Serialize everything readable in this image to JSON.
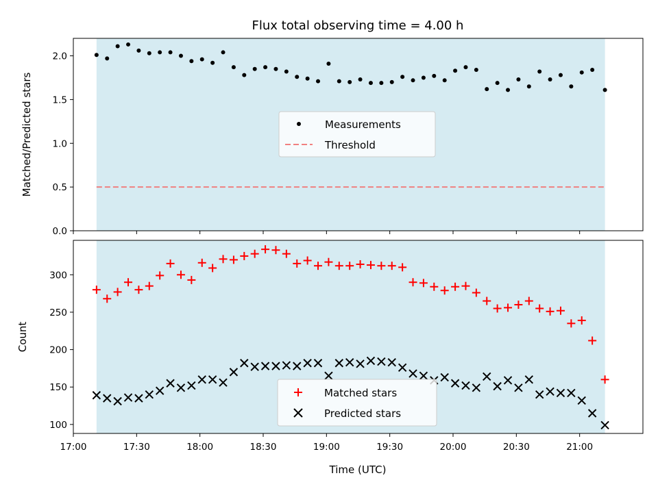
{
  "title": "Flux total observing time = 4.00 h",
  "colors": {
    "shade": "#add8e6",
    "threshold": "#f08080",
    "measurements": "#000000",
    "matched": "#ff0000",
    "predicted": "#000000"
  },
  "chart_data": [
    {
      "type": "scatter",
      "name": "ratio-panel",
      "ylabel": "Matched/Predicted stars",
      "xlim": [
        "17:00",
        "21:30"
      ],
      "ylim": [
        0.0,
        2.2
      ],
      "yticks": [
        0.0,
        0.5,
        1.0,
        1.5,
        2.0
      ],
      "ytick_labels": [
        "0.0",
        "0.5",
        "1.0",
        "1.5",
        "2.0"
      ],
      "shaded_interval": [
        "17:11",
        "21:12"
      ],
      "legend_placement": "center",
      "legend": [
        "Measurements",
        "Threshold"
      ],
      "threshold": 0.5,
      "series": [
        {
          "name": "Measurements",
          "x": [
            "17:11",
            "17:16",
            "17:21",
            "17:26",
            "17:31",
            "17:36",
            "17:41",
            "17:46",
            "17:51",
            "17:56",
            "18:01",
            "18:06",
            "18:11",
            "18:16",
            "18:21",
            "18:26",
            "18:31",
            "18:36",
            "18:41",
            "18:46",
            "18:51",
            "18:56",
            "19:01",
            "19:06",
            "19:11",
            "19:16",
            "19:21",
            "19:26",
            "19:31",
            "19:36",
            "19:41",
            "19:46",
            "19:51",
            "19:56",
            "20:01",
            "20:06",
            "20:11",
            "20:16",
            "20:21",
            "20:26",
            "20:31",
            "20:36",
            "20:41",
            "20:46",
            "20:51",
            "20:56",
            "21:01",
            "21:06",
            "21:12"
          ],
          "values": [
            2.01,
            1.97,
            2.11,
            2.13,
            2.06,
            2.03,
            2.04,
            2.04,
            2.0,
            1.94,
            1.96,
            1.92,
            2.04,
            1.87,
            1.78,
            1.85,
            1.87,
            1.85,
            1.82,
            1.76,
            1.74,
            1.71,
            1.91,
            1.71,
            1.7,
            1.73,
            1.69,
            1.69,
            1.7,
            1.76,
            1.72,
            1.75,
            1.77,
            1.72,
            1.83,
            1.87,
            1.84,
            1.62,
            1.69,
            1.61,
            1.73,
            1.65,
            1.82,
            1.73,
            1.78,
            1.65,
            1.81,
            1.84,
            1.61
          ]
        }
      ]
    },
    {
      "type": "scatter",
      "name": "count-panel",
      "ylabel": "Count",
      "xlabel": "Time (UTC)",
      "xlim": [
        "17:00",
        "21:30"
      ],
      "ylim": [
        88,
        346
      ],
      "yticks": [
        100,
        150,
        200,
        250,
        300
      ],
      "ytick_labels": [
        "100",
        "150",
        "200",
        "250",
        "300"
      ],
      "xticks": [
        "17:00",
        "17:30",
        "18:00",
        "18:30",
        "19:00",
        "19:30",
        "20:00",
        "20:30",
        "21:00"
      ],
      "xtick_labels": [
        "17:00",
        "17:30",
        "18:00",
        "18:30",
        "19:00",
        "19:30",
        "20:00",
        "20:30",
        "21:00"
      ],
      "shaded_interval": [
        "17:11",
        "21:12"
      ],
      "legend_placement": "lower center",
      "legend": [
        "Matched stars",
        "Predicted stars"
      ],
      "series": [
        {
          "name": "Matched stars",
          "x": [
            "17:11",
            "17:16",
            "17:21",
            "17:26",
            "17:31",
            "17:36",
            "17:41",
            "17:46",
            "17:51",
            "17:56",
            "18:01",
            "18:06",
            "18:11",
            "18:16",
            "18:21",
            "18:26",
            "18:31",
            "18:36",
            "18:41",
            "18:46",
            "18:51",
            "18:56",
            "19:01",
            "19:06",
            "19:11",
            "19:16",
            "19:21",
            "19:26",
            "19:31",
            "19:36",
            "19:41",
            "19:46",
            "19:51",
            "19:56",
            "20:01",
            "20:06",
            "20:11",
            "20:16",
            "20:21",
            "20:26",
            "20:31",
            "20:36",
            "20:41",
            "20:46",
            "20:51",
            "20:56",
            "21:01",
            "21:06",
            "21:12"
          ],
          "values": [
            280,
            268,
            277,
            290,
            280,
            285,
            299,
            315,
            300,
            293,
            316,
            309,
            321,
            320,
            325,
            328,
            334,
            333,
            328,
            315,
            319,
            312,
            317,
            312,
            312,
            314,
            313,
            312,
            312,
            310,
            290,
            289,
            284,
            279,
            284,
            285,
            276,
            265,
            255,
            256,
            260,
            265,
            255,
            251,
            252,
            235,
            239,
            212,
            160
          ]
        },
        {
          "name": "Predicted stars",
          "x": [
            "17:11",
            "17:16",
            "17:21",
            "17:26",
            "17:31",
            "17:36",
            "17:41",
            "17:46",
            "17:51",
            "17:56",
            "18:01",
            "18:06",
            "18:11",
            "18:16",
            "18:21",
            "18:26",
            "18:31",
            "18:36",
            "18:41",
            "18:46",
            "18:51",
            "18:56",
            "19:01",
            "19:06",
            "19:11",
            "19:16",
            "19:21",
            "19:26",
            "19:31",
            "19:36",
            "19:41",
            "19:46",
            "19:51",
            "19:56",
            "20:01",
            "20:06",
            "20:11",
            "20:16",
            "20:21",
            "20:26",
            "20:31",
            "20:36",
            "20:41",
            "20:46",
            "20:51",
            "20:56",
            "21:01",
            "21:06",
            "21:12"
          ],
          "values": [
            139,
            135,
            131,
            136,
            135,
            140,
            145,
            155,
            149,
            152,
            160,
            160,
            156,
            170,
            182,
            177,
            178,
            178,
            179,
            178,
            182,
            182,
            165,
            182,
            183,
            181,
            185,
            184,
            183,
            176,
            168,
            165,
            159,
            163,
            155,
            152,
            149,
            164,
            151,
            159,
            149,
            160,
            140,
            144,
            142,
            142,
            132,
            115,
            99
          ]
        }
      ]
    }
  ]
}
